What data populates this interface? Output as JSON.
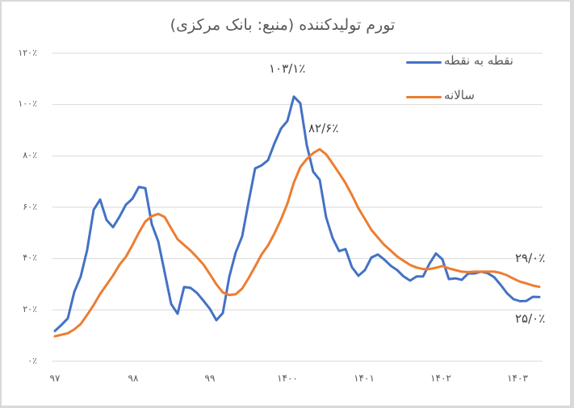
{
  "chart_data": {
    "type": "line",
    "title": "تورم تولیدکننده (منبع: بانک مرکزی)",
    "xlabel": "",
    "ylabel": "",
    "ylim": [
      0,
      120
    ],
    "grid": true,
    "legend_position": "top-right",
    "y_ticks": [
      "۱۲۰٪",
      "۱۰۰٪",
      "۸۰٪",
      "۶۰٪",
      "۴۰٪",
      "۲۰٪",
      "۰٪"
    ],
    "y_tick_values": [
      120,
      100,
      80,
      60,
      40,
      20,
      0
    ],
    "x_ticks": [
      "۹۷",
      "۹۸",
      "۹۹",
      "۱۴۰۰",
      "۱۴۰۱",
      "۱۴۰۲",
      "۱۴۰۳"
    ],
    "x_tick_index": [
      0,
      12,
      24,
      36,
      48,
      60,
      72
    ],
    "x_note": "monthly observations starting at start of 97",
    "series": [
      {
        "name": "نقطه به نقطه",
        "color": "#4472c4",
        "values": [
          11.8,
          14.1,
          16.7,
          27,
          33,
          43.4,
          59,
          63,
          55,
          52.2,
          56.3,
          61,
          63.3,
          67.9,
          67.4,
          53.4,
          46.7,
          34.6,
          22.3,
          18.5,
          28.9,
          28.6,
          26.6,
          23.6,
          20.4,
          16,
          18.8,
          32.9,
          42.4,
          48.7,
          62.2,
          75.1,
          76.3,
          78.3,
          84.9,
          90.6,
          93.6,
          103.1,
          100.5,
          84.2,
          73.8,
          70.7,
          56,
          48,
          42.9,
          43.7,
          36.6,
          33.3,
          35.5,
          40.4,
          41.6,
          39.6,
          37.2,
          35.5,
          33,
          31.4,
          33,
          33,
          38,
          42,
          39.7,
          32,
          32.3,
          31.7,
          34.2,
          34.2,
          34.9,
          34.3,
          32.8,
          29.8,
          26.5,
          24.2,
          23.4,
          23.5,
          25.1,
          25.0
        ]
      },
      {
        "name": "سالانه",
        "color": "#ed7d31",
        "values": [
          9.7,
          10.3,
          10.9,
          12.4,
          14.5,
          18.1,
          21.9,
          26.2,
          29.8,
          33.4,
          37.6,
          40.7,
          45.2,
          50.1,
          54.4,
          56.5,
          57.4,
          56.2,
          51.8,
          47.5,
          45.3,
          43.1,
          40.5,
          37.7,
          33.9,
          30,
          26.8,
          25.8,
          26.1,
          28.3,
          32.4,
          36.9,
          41.6,
          45.1,
          49.8,
          55.2,
          61.4,
          69.6,
          75.6,
          78.8,
          81.1,
          82.6,
          80.6,
          77,
          73.3,
          69.4,
          64.7,
          59.6,
          55.4,
          51.2,
          48.2,
          45.3,
          43.1,
          40.8,
          39.1,
          37.5,
          36.5,
          35.9,
          35.9,
          36.4,
          37.1,
          36.2,
          35.5,
          34.9,
          34.7,
          34.9,
          34.9,
          34.9,
          34.9,
          34.4,
          33.5,
          32.2,
          31,
          30.3,
          29.5,
          29.0
        ]
      }
    ],
    "annotations": [
      {
        "text": "۱۰۳/۱٪",
        "series": "نقطه به نقطه",
        "point": "peak",
        "value": 103.1
      },
      {
        "text": "۸۲/۶٪",
        "series": "سالانه",
        "point": "peak",
        "value": 82.6
      },
      {
        "text": "۲۹/۰٪",
        "series": "سالانه",
        "point": "last",
        "value": 29.0
      },
      {
        "text": "۲۵/۰٪",
        "series": "نقطه به نقطه",
        "point": "last",
        "value": 25.0
      }
    ]
  },
  "legend": {
    "items": [
      {
        "label": "نقطه به نقطه",
        "color": "#4472c4"
      },
      {
        "label": "سالانه",
        "color": "#ed7d31"
      }
    ]
  },
  "colors": {
    "gridline": "#d9d9d9",
    "text": "#595959",
    "frame": "#d9d9d9"
  }
}
